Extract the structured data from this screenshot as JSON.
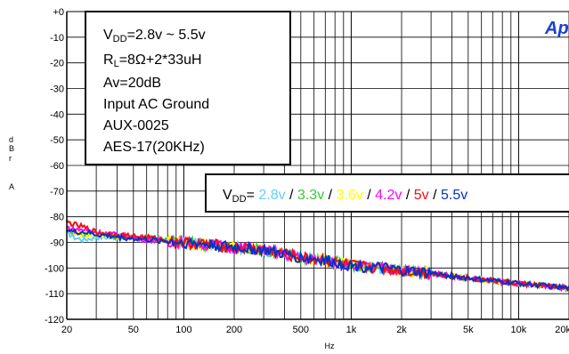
{
  "chart_data": {
    "type": "line",
    "title": "",
    "xlabel": "Hz",
    "ylabel_lines": [
      "d",
      "B",
      "r",
      "A"
    ],
    "xscale": "log",
    "xlim": [
      20,
      20000
    ],
    "ylim": [
      -120,
      0
    ],
    "grid": true,
    "x_ticks": [
      20,
      50,
      100,
      200,
      500,
      1000,
      2000,
      5000,
      10000,
      20000
    ],
    "x_tick_labels": [
      "20",
      "50",
      "100",
      "200",
      "500",
      "1k",
      "2k",
      "5k",
      "10k",
      "20k"
    ],
    "y_ticks": [
      0,
      -10,
      -20,
      -30,
      -40,
      -50,
      -60,
      -70,
      -80,
      -90,
      -100,
      -110,
      -120
    ],
    "y_tick_labels": [
      "+0",
      "-10",
      "-20",
      "-30",
      "-40",
      "-50",
      "-60",
      "-70",
      "-80",
      "-90",
      "-100",
      "-110",
      "-120"
    ],
    "conditions": {
      "line1_main": "V",
      "line1_sub": "DD",
      "line1_rest": "=2.8v ~ 5.5v",
      "line2_main": "R",
      "line2_sub": "L",
      "line2_rest": "=8Ω+2*33uH",
      "line3": "Av=20dB",
      "line4": "Input AC Ground",
      "line5": "AUX-0025",
      "line6": "AES-17(20KHz)"
    },
    "legend": {
      "prefix_main": "V",
      "prefix_sub": "DD",
      "prefix_eq": "=",
      "separator": " / ",
      "placement": "top-right"
    },
    "brand_text": "Ap",
    "series": [
      {
        "name": "2.8v",
        "color": "#66ccff",
        "x": [
          20,
          22,
          25,
          30,
          40,
          60,
          100,
          150,
          200,
          300,
          500,
          700,
          1000,
          1500,
          2000,
          3000,
          5000,
          7000,
          10000,
          15000,
          20000
        ],
        "y": [
          -86,
          -88,
          -89,
          -88,
          -88,
          -88,
          -90,
          -91,
          -92,
          -93,
          -96,
          -97,
          -99,
          -100,
          -101,
          -102,
          -104,
          -105,
          -106,
          -107,
          -108
        ]
      },
      {
        "name": "3.3v",
        "color": "#33cc33",
        "x": [
          20,
          22,
          25,
          30,
          40,
          60,
          100,
          150,
          200,
          300,
          500,
          700,
          1000,
          1500,
          2000,
          3000,
          5000,
          7000,
          10000,
          15000,
          20000
        ],
        "y": [
          -85,
          -86,
          -87,
          -86,
          -88,
          -88,
          -90,
          -91,
          -92,
          -93,
          -96,
          -97,
          -99,
          -100,
          -101,
          -102,
          -104,
          -105,
          -106,
          -107,
          -108
        ]
      },
      {
        "name": "3.6v",
        "color": "#ffff00",
        "x": [
          20,
          22,
          25,
          30,
          40,
          60,
          100,
          150,
          200,
          300,
          500,
          700,
          1000,
          1500,
          2000,
          3000,
          5000,
          7000,
          10000,
          15000,
          20000
        ],
        "y": [
          -85,
          -86,
          -87,
          -87,
          -88,
          -89,
          -90,
          -91,
          -92,
          -93,
          -96,
          -97,
          -99,
          -100,
          -101,
          -102,
          -104,
          -105,
          -106,
          -107,
          -108
        ]
      },
      {
        "name": "4.2v",
        "color": "#ff00ff",
        "x": [
          20,
          22,
          25,
          30,
          40,
          60,
          100,
          150,
          200,
          300,
          500,
          700,
          1000,
          1500,
          2000,
          3000,
          5000,
          7000,
          10000,
          15000,
          20000
        ],
        "y": [
          -84,
          -85,
          -85,
          -86,
          -87,
          -89,
          -90,
          -91,
          -92,
          -93,
          -96,
          -97,
          -99,
          -100,
          -101,
          -102,
          -104,
          -105,
          -106,
          -107,
          -108
        ]
      },
      {
        "name": "5v",
        "color": "#ee1111",
        "x": [
          20,
          22,
          25,
          30,
          40,
          60,
          100,
          150,
          200,
          300,
          500,
          700,
          1000,
          1500,
          2000,
          3000,
          5000,
          7000,
          10000,
          15000,
          20000
        ],
        "y": [
          -82,
          -83,
          -84,
          -86,
          -87,
          -88,
          -90,
          -91,
          -92,
          -93,
          -96,
          -97,
          -99,
          -100,
          -101,
          -102,
          -104,
          -105,
          -106,
          -107,
          -108
        ]
      },
      {
        "name": "5.5v",
        "color": "#0033cc",
        "x": [
          20,
          22,
          25,
          30,
          40,
          60,
          100,
          150,
          200,
          300,
          500,
          700,
          1000,
          1500,
          2000,
          3000,
          5000,
          7000,
          10000,
          15000,
          20000
        ],
        "y": [
          -85,
          -86,
          -86,
          -87,
          -88,
          -89,
          -90,
          -91,
          -92,
          -93,
          -96,
          -97,
          -99,
          -100,
          -101,
          -102,
          -104,
          -105,
          -106,
          -107,
          -108
        ]
      }
    ]
  },
  "colors": {
    "axis": "#000000",
    "grid": "#000000",
    "box_border": "#000000",
    "brand": "#1a3fd6"
  }
}
